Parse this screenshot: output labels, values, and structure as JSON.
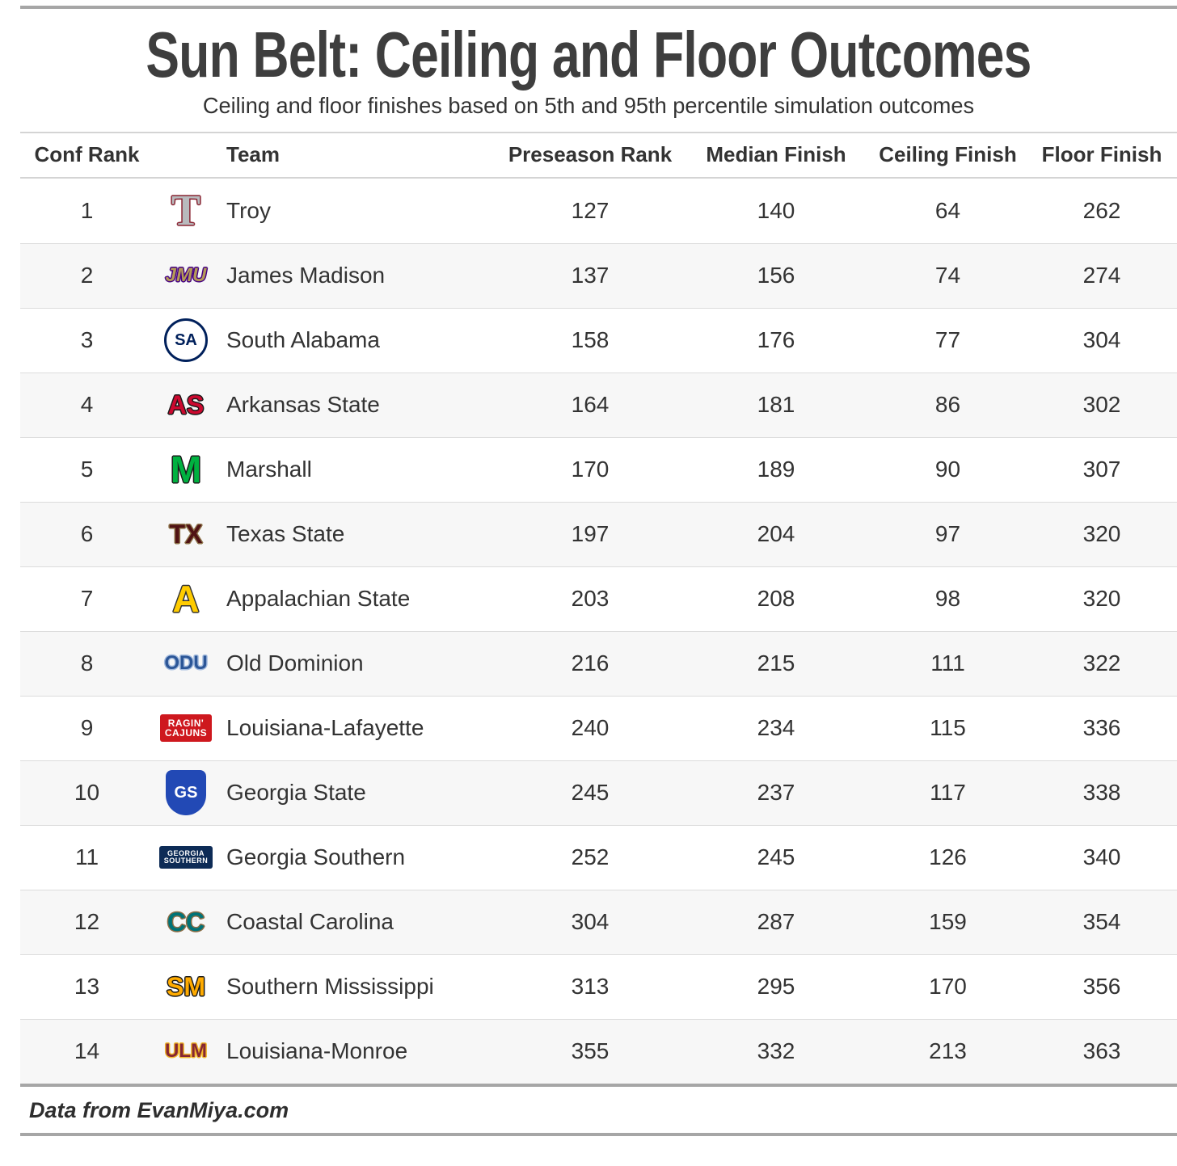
{
  "chart_data": {
    "type": "table",
    "title": "Sun Belt: Ceiling and Floor Outcomes",
    "subtitle": "Ceiling and floor finishes based on 5th and 95th percentile simulation outcomes",
    "source_note": "Data from EvanMiya.com",
    "columns": [
      "Conf Rank",
      "Team",
      "Preseason Rank",
      "Median Finish",
      "Ceiling Finish",
      "Floor Finish"
    ],
    "rows": [
      {
        "conf_rank": 1,
        "team": "Troy",
        "preseason_rank": 127,
        "median_finish": 140,
        "ceiling_finish": 64,
        "floor_finish": 262,
        "logo": {
          "name": "troy-trident-logo",
          "label": "T",
          "shape": "text",
          "fg": "#b8babd",
          "outline": "#8a2432",
          "fs": 54,
          "serif": true
        }
      },
      {
        "conf_rank": 2,
        "team": "James Madison",
        "preseason_rank": 137,
        "median_finish": 156,
        "ceiling_finish": 74,
        "floor_finish": 274,
        "logo": {
          "name": "jmu-logo",
          "label": "JMU",
          "shape": "text",
          "fg": "#b49b57",
          "outline": "#450084",
          "fs": 24,
          "italic": true
        }
      },
      {
        "conf_rank": 3,
        "team": "South Alabama",
        "preseason_rank": 158,
        "median_finish": 176,
        "ceiling_finish": 77,
        "floor_finish": 304,
        "logo": {
          "name": "south-alabama-jaguar-logo",
          "label": "SA",
          "shape": "circle",
          "fg": "#00205b",
          "bg": "#ffffff",
          "border": "#00205b",
          "fs": 20
        }
      },
      {
        "conf_rank": 4,
        "team": "Arkansas State",
        "preseason_rank": 164,
        "median_finish": 181,
        "ceiling_finish": 86,
        "floor_finish": 302,
        "logo": {
          "name": "arkansas-state-red-wolf-logo",
          "label": "AS",
          "shape": "text",
          "fg": "#cc092f",
          "outline": "#1a1a1a",
          "fs": 32
        }
      },
      {
        "conf_rank": 5,
        "team": "Marshall",
        "preseason_rank": 170,
        "median_finish": 189,
        "ceiling_finish": 90,
        "floor_finish": 307,
        "logo": {
          "name": "marshall-m-logo",
          "label": "M",
          "shape": "text",
          "fg": "#00b140",
          "outline": "#1a1a1a",
          "fs": 46
        }
      },
      {
        "conf_rank": 6,
        "team": "Texas State",
        "preseason_rank": 197,
        "median_finish": 204,
        "ceiling_finish": 97,
        "floor_finish": 320,
        "logo": {
          "name": "texas-state-bobcat-logo",
          "label": "TX",
          "shape": "text",
          "fg": "#501214",
          "outline": "#8d734a",
          "fs": 32
        }
      },
      {
        "conf_rank": 7,
        "team": "Appalachian State",
        "preseason_rank": 203,
        "median_finish": 208,
        "ceiling_finish": 98,
        "floor_finish": 320,
        "logo": {
          "name": "appalachian-state-a-logo",
          "label": "A",
          "shape": "text",
          "fg": "#ffcc00",
          "outline": "#333333",
          "fs": 46
        }
      },
      {
        "conf_rank": 8,
        "team": "Old Dominion",
        "preseason_rank": 216,
        "median_finish": 215,
        "ceiling_finish": 111,
        "floor_finish": 322,
        "logo": {
          "name": "odu-crown-logo",
          "label": "ODU",
          "shape": "text",
          "fg": "#2c5697",
          "outline": "#a1b9dd",
          "fs": 24
        }
      },
      {
        "conf_rank": 9,
        "team": "Louisiana-Lafayette",
        "preseason_rank": 240,
        "median_finish": 234,
        "ceiling_finish": 115,
        "floor_finish": 336,
        "logo": {
          "name": "ragin-cajuns-logo",
          "label": "RAGIN'\nCAJUNS",
          "shape": "box",
          "fg": "#ffffff",
          "bg": "#ce181e",
          "fs": 12
        }
      },
      {
        "conf_rank": 10,
        "team": "Georgia State",
        "preseason_rank": 245,
        "median_finish": 237,
        "ceiling_finish": 117,
        "floor_finish": 338,
        "logo": {
          "name": "georgia-state-panther-logo",
          "label": "GS",
          "shape": "shield",
          "fg": "#ffffff",
          "bg": "#2249b5",
          "fs": 20
        }
      },
      {
        "conf_rank": 11,
        "team": "Georgia Southern",
        "preseason_rank": 252,
        "median_finish": 245,
        "ceiling_finish": 126,
        "floor_finish": 340,
        "logo": {
          "name": "georgia-southern-eagle-logo",
          "label": "GEORGIA\nSOUTHERN",
          "shape": "box",
          "fg": "#ffffff",
          "bg": "#0d2b56",
          "fs": 9
        }
      },
      {
        "conf_rank": 12,
        "team": "Coastal Carolina",
        "preseason_rank": 304,
        "median_finish": 287,
        "ceiling_finish": 159,
        "floor_finish": 354,
        "logo": {
          "name": "coastal-carolina-chanticleer-logo",
          "label": "CC",
          "shape": "text",
          "fg": "#007377",
          "outline": "#8c6d46",
          "fs": 32
        }
      },
      {
        "conf_rank": 13,
        "team": "Southern Mississippi",
        "preseason_rank": 313,
        "median_finish": 295,
        "ceiling_finish": 170,
        "floor_finish": 356,
        "logo": {
          "name": "southern-miss-eagle-logo",
          "label": "SM",
          "shape": "text",
          "fg": "#ffab00",
          "outline": "#1a1a1a",
          "fs": 32
        }
      },
      {
        "conf_rank": 14,
        "team": "Louisiana-Monroe",
        "preseason_rank": 355,
        "median_finish": 332,
        "ceiling_finish": 213,
        "floor_finish": 363,
        "logo": {
          "name": "ulm-logo",
          "label": "ULM",
          "shape": "text",
          "fg": "#862633",
          "outline": "#f1b82d",
          "fs": 24
        }
      }
    ],
    "layout": {
      "legend": "none",
      "grid": "row-dividers",
      "striped_rows": true,
      "numeric_columns_alignment": "center"
    }
  },
  "colors": {
    "rule": "#a6a6a6",
    "header_border": "#d4d4d4",
    "row_divider": "#dcdcdc",
    "stripe": "#f7f7f7",
    "title_text": "#3e3e3e",
    "body_text": "#333333"
  }
}
